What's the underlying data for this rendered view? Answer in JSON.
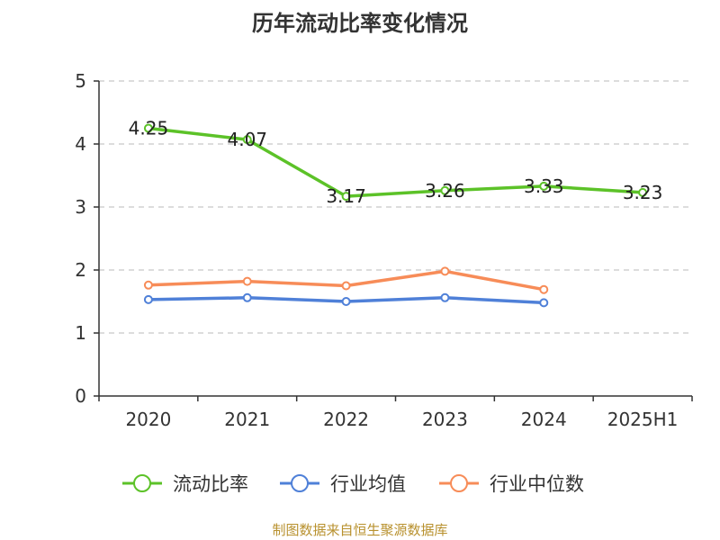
{
  "chart_data": {
    "type": "line",
    "title": "历年流动比率变化情况",
    "categories": [
      "2020",
      "2021",
      "2022",
      "2023",
      "2024",
      "2025H1"
    ],
    "ylim": [
      0,
      5
    ],
    "yticks": [
      0,
      1,
      2,
      3,
      4,
      5
    ],
    "grid": true,
    "legend_position": "bottom",
    "series": [
      {
        "name": "流动比率",
        "color": "#5cc228",
        "values": [
          4.25,
          4.07,
          3.17,
          3.26,
          3.33,
          3.23
        ],
        "labels": [
          "4.25",
          "4.07",
          "3.17",
          "3.26",
          "3.33",
          "3.23"
        ]
      },
      {
        "name": "行业均值",
        "color": "#4f80d8",
        "values": [
          1.53,
          1.56,
          1.5,
          1.56,
          1.48,
          null
        ]
      },
      {
        "name": "行业中位数",
        "color": "#f78c58",
        "values": [
          1.76,
          1.82,
          1.75,
          1.98,
          1.69,
          null
        ]
      }
    ],
    "source": "制图数据来自恒生聚源数据库"
  }
}
